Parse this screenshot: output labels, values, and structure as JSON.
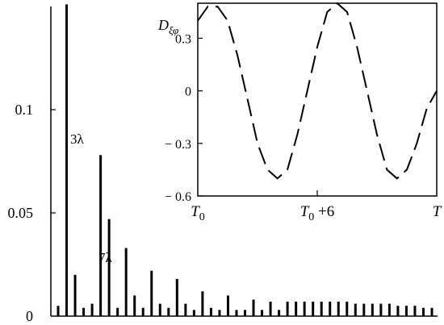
{
  "chart_data": [
    {
      "type": "bar",
      "title": "",
      "xlabel": "",
      "ylabel": "",
      "ylim": [
        0,
        0.15
      ],
      "yticks": [
        "0",
        "0.05",
        "0.1"
      ],
      "grid": false,
      "annotations": [
        "3λ",
        "7λ"
      ],
      "series": [
        {
          "values": [
            0.005,
            0.151,
            0.02,
            0.004,
            0.006,
            0.078,
            0.047,
            0.004,
            0.033,
            0.01,
            0.004,
            0.022,
            0.006,
            0.004,
            0.018,
            0.006,
            0.003,
            0.012,
            0.004,
            0.003,
            0.01,
            0.003,
            0.003,
            0.008,
            0.003,
            0.007,
            0.003,
            0.007,
            0.007,
            0.007,
            0.007,
            0.007,
            0.007,
            0.007,
            0.007,
            0.006,
            0.006,
            0.006,
            0.006,
            0.006,
            0.005,
            0.005,
            0.005,
            0.004,
            0.004
          ]
        }
      ]
    },
    {
      "type": "line",
      "title": "",
      "ylabel_main": "D",
      "ylabel_sub": "ξφ",
      "ylim": [
        -0.6,
        0.5
      ],
      "yticks": [
        "0.3",
        "0",
        "− 0.3",
        "− 0.6"
      ],
      "xticks": [
        {
          "main": "T",
          "sub": "0",
          "suffix": ""
        },
        {
          "main": "T",
          "sub": "0",
          "suffix": " +6"
        },
        {
          "main": "T",
          "sub": "",
          "suffix": ""
        }
      ],
      "xlim": [
        0,
        12
      ],
      "line_style": "dashed",
      "grid": false,
      "series": [
        {
          "x": [
            0,
            0.5,
            1,
            1.5,
            2,
            2.5,
            3,
            3.5,
            4,
            4.5,
            5,
            5.5,
            6,
            6.5,
            7,
            7.5,
            8,
            8.5,
            9,
            9.5,
            10,
            10.5,
            11,
            11.5,
            12
          ],
          "y": [
            0.4,
            0.48,
            0.48,
            0.4,
            0.2,
            -0.05,
            -0.3,
            -0.45,
            -0.5,
            -0.45,
            -0.25,
            0.0,
            0.25,
            0.45,
            0.5,
            0.45,
            0.25,
            0.0,
            -0.25,
            -0.45,
            -0.5,
            -0.45,
            -0.3,
            -0.1,
            0.0
          ]
        }
      ]
    }
  ]
}
